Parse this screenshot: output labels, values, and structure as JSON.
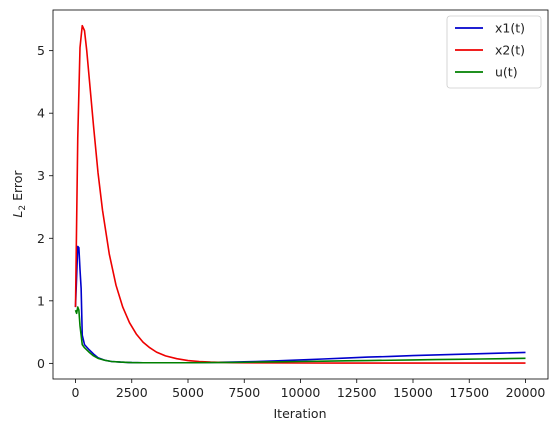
{
  "chart_data": {
    "type": "line",
    "title": "",
    "xlabel": "Iteration",
    "ylabel_main": "L",
    "ylabel_sub": "2",
    "ylabel_rest": " Error",
    "xlim": [
      -1000,
      21000
    ],
    "ylim": [
      -0.25,
      5.65
    ],
    "xticks": [
      0,
      2500,
      5000,
      7500,
      10000,
      12500,
      15000,
      17500,
      20000
    ],
    "yticks": [
      0,
      1,
      2,
      3,
      4,
      5
    ],
    "legend_position": "top-right",
    "series": [
      {
        "name": "x1(t)",
        "color": "#0000cc",
        "x": [
          0,
          100,
          150,
          200,
          250,
          300,
          400,
          600,
          800,
          1000,
          1300,
          1600,
          2000,
          2500,
          3000,
          3500,
          4000,
          5000,
          6000,
          7000,
          8000,
          9000,
          10000,
          11000,
          12000,
          13000,
          14000,
          15000,
          16000,
          17000,
          18000,
          19000,
          20000
        ],
        "y": [
          0.9,
          1.87,
          1.85,
          1.5,
          1.2,
          0.45,
          0.3,
          0.22,
          0.15,
          0.09,
          0.05,
          0.03,
          0.02,
          0.012,
          0.01,
          0.01,
          0.01,
          0.01,
          0.015,
          0.02,
          0.03,
          0.04,
          0.055,
          0.07,
          0.085,
          0.1,
          0.11,
          0.125,
          0.135,
          0.145,
          0.155,
          0.165,
          0.175
        ]
      },
      {
        "name": "x2(t)",
        "color": "#ee0000",
        "x": [
          0,
          100,
          200,
          300,
          400,
          500,
          600,
          800,
          1000,
          1200,
          1500,
          1800,
          2100,
          2400,
          2700,
          3000,
          3300,
          3600,
          4000,
          4500,
          5000,
          5500,
          6000,
          7000,
          8000,
          10000,
          12000,
          14000,
          16000,
          18000,
          20000
        ],
        "y": [
          0.9,
          3.6,
          5.05,
          5.4,
          5.32,
          5.0,
          4.6,
          3.8,
          3.05,
          2.45,
          1.75,
          1.25,
          0.9,
          0.65,
          0.47,
          0.34,
          0.25,
          0.18,
          0.12,
          0.075,
          0.045,
          0.03,
          0.02,
          0.01,
          0.008,
          0.006,
          0.005,
          0.005,
          0.005,
          0.005,
          0.005
        ]
      },
      {
        "name": "u(t)",
        "color": "#008000",
        "x": [
          0,
          50,
          100,
          150,
          200,
          300,
          400,
          600,
          800,
          1000,
          1300,
          1600,
          2000,
          2500,
          3000,
          4000,
          5000,
          6000,
          7000,
          8000,
          9000,
          10000,
          11000,
          12000,
          13000,
          14000,
          15000,
          16000,
          17000,
          18000,
          19000,
          20000
        ],
        "y": [
          0.85,
          0.8,
          0.9,
          0.85,
          0.6,
          0.3,
          0.25,
          0.18,
          0.12,
          0.08,
          0.05,
          0.03,
          0.02,
          0.012,
          0.01,
          0.01,
          0.01,
          0.012,
          0.015,
          0.02,
          0.025,
          0.03,
          0.035,
          0.04,
          0.045,
          0.05,
          0.055,
          0.06,
          0.065,
          0.07,
          0.075,
          0.08
        ]
      }
    ]
  }
}
